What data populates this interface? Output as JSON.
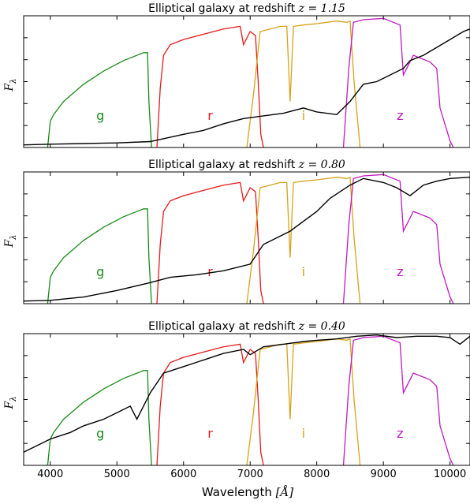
{
  "figure": {
    "xlabel_prefix": "Wavelength ",
    "xlabel_unit": "[Å]",
    "ylabel_main": "F",
    "ylabel_sub": "λ"
  },
  "chart_data": [
    {
      "type": "line",
      "title_text": "Elliptical galaxy at redshift ",
      "title_math": "z = 1.15",
      "redshift": 1.15,
      "xlim": [
        3600,
        10300
      ],
      "xticks": [
        4000,
        5000,
        6000,
        7000,
        8000,
        9000,
        10000
      ],
      "tick_labels_visible": false,
      "series": [
        {
          "color": "#000000",
          "x": [
            3600,
            4000,
            4500,
            5000,
            5500,
            6000,
            6300,
            6600,
            6900,
            7200,
            7500,
            7800,
            8000,
            8300,
            8500,
            8700,
            8900,
            9100,
            9300,
            9400,
            9600,
            9800,
            10000,
            10200,
            10300
          ],
          "y": [
            0.02,
            0.025,
            0.03,
            0.035,
            0.045,
            0.1,
            0.13,
            0.18,
            0.22,
            0.24,
            0.26,
            0.3,
            0.27,
            0.25,
            0.35,
            0.48,
            0.5,
            0.55,
            0.6,
            0.66,
            0.7,
            0.76,
            0.82,
            0.88,
            0.9
          ]
        }
      ]
    },
    {
      "type": "line",
      "title_text": "Elliptical galaxy at redshift ",
      "title_math": "z = 0.80",
      "redshift": 0.8,
      "xlim": [
        3600,
        10300
      ],
      "xticks": [
        4000,
        5000,
        6000,
        7000,
        8000,
        9000,
        10000
      ],
      "tick_labels_visible": false,
      "series": [
        {
          "color": "#000000",
          "x": [
            3600,
            4000,
            4500,
            5000,
            5500,
            5800,
            6200,
            6600,
            7000,
            7200,
            7600,
            8000,
            8200,
            8500,
            8700,
            9000,
            9200,
            9400,
            9600,
            9800,
            10000,
            10300
          ],
          "y": [
            0.02,
            0.025,
            0.05,
            0.1,
            0.16,
            0.2,
            0.22,
            0.25,
            0.3,
            0.45,
            0.55,
            0.7,
            0.8,
            0.9,
            0.95,
            0.92,
            0.88,
            0.82,
            0.9,
            0.93,
            0.95,
            0.96
          ]
        }
      ]
    },
    {
      "type": "line",
      "title_text": "Elliptical galaxy at redshift ",
      "title_math": "z = 0.40",
      "redshift": 0.4,
      "xlim": [
        3600,
        10300
      ],
      "xticks": [
        4000,
        5000,
        6000,
        7000,
        8000,
        9000,
        10000
      ],
      "tick_labels_visible": true,
      "series": [
        {
          "color": "#000000",
          "x": [
            3600,
            3800,
            4000,
            4300,
            4500,
            4800,
            5000,
            5200,
            5300,
            5500,
            5700,
            6000,
            6300,
            6600,
            6900,
            7000,
            7200,
            7500,
            7800,
            8000,
            8300,
            8600,
            8900,
            9200,
            9500,
            9800,
            10000,
            10150,
            10300
          ],
          "y": [
            0.1,
            0.15,
            0.2,
            0.25,
            0.3,
            0.35,
            0.4,
            0.45,
            0.35,
            0.55,
            0.7,
            0.75,
            0.8,
            0.85,
            0.88,
            0.84,
            0.9,
            0.92,
            0.94,
            0.95,
            0.96,
            0.98,
            0.99,
            0.97,
            0.98,
            0.98,
            0.97,
            0.92,
            0.98
          ]
        }
      ]
    }
  ],
  "filters": [
    {
      "name": "g",
      "color": "#1a8a1a",
      "label_x": 4750,
      "x": [
        3960,
        4000,
        4050,
        4200,
        4500,
        4800,
        5100,
        5400,
        5460,
        5480,
        5520
      ],
      "y": [
        0.0,
        0.2,
        0.25,
        0.35,
        0.48,
        0.58,
        0.66,
        0.72,
        0.72,
        0.35,
        0.0
      ]
    },
    {
      "name": "r",
      "color": "#e41a1a",
      "label_x": 6400,
      "x": [
        5600,
        5650,
        5700,
        5800,
        6000,
        6300,
        6600,
        6850,
        6900,
        7000,
        7080,
        7120,
        7160,
        7200
      ],
      "y": [
        0.0,
        0.45,
        0.7,
        0.78,
        0.82,
        0.86,
        0.9,
        0.92,
        0.78,
        0.88,
        0.85,
        0.5,
        0.1,
        0.0
      ]
    },
    {
      "name": "i",
      "color": "#d6a21a",
      "label_x": 7800,
      "x": [
        6950,
        7050,
        7150,
        7300,
        7450,
        7550,
        7600,
        7650,
        7800,
        8000,
        8300,
        8450,
        8500,
        8560,
        8650
      ],
      "y": [
        0.0,
        0.4,
        0.88,
        0.9,
        0.92,
        0.92,
        0.35,
        0.92,
        0.93,
        0.94,
        0.96,
        0.95,
        0.96,
        0.5,
        0.0
      ]
    },
    {
      "name": "z",
      "color": "#bf1abf",
      "label_x": 9250,
      "x": [
        8400,
        8480,
        8550,
        8700,
        9000,
        9250,
        9300,
        9350,
        9450,
        9700,
        9800,
        9850,
        10000,
        10050
      ],
      "y": [
        0.0,
        0.6,
        0.95,
        0.97,
        0.98,
        0.93,
        0.55,
        0.6,
        0.7,
        0.65,
        0.6,
        0.3,
        0.05,
        0.0
      ]
    }
  ]
}
